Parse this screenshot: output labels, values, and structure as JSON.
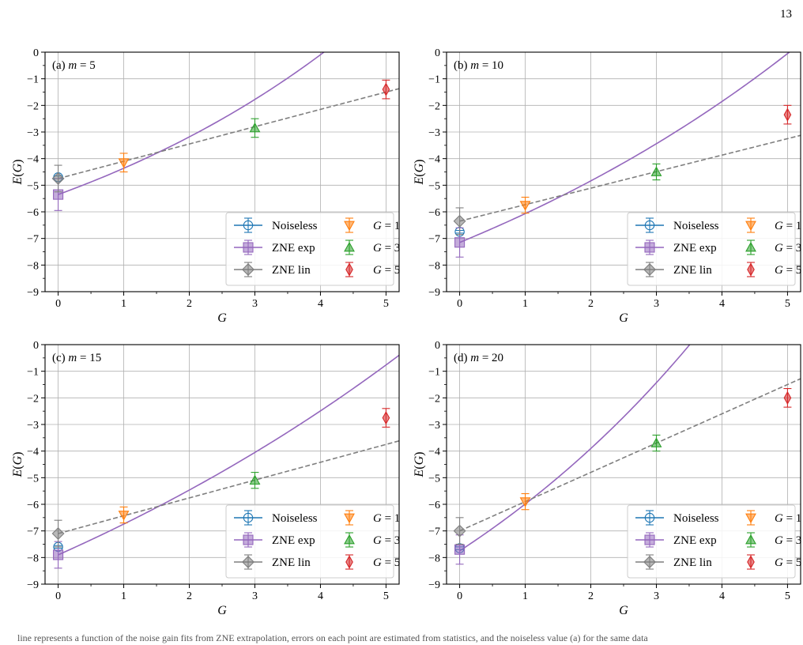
{
  "page": {
    "number": "13",
    "caption_fragment": "line represents a function of the noise gain fits from ZNE extrapolation, errors on each point are estimated from statistics, and the noiseless value (a) for the same data"
  },
  "colors": {
    "noiseless": "#1f77b4",
    "zne_exp": "#9467bd",
    "zne_lin": "#7f7f7f",
    "g1": "#ff7f0e",
    "g3": "#2ca02c",
    "g5": "#d62728",
    "grid": "#b0b0b0"
  },
  "legend_labels": {
    "noiseless": "Noiseless",
    "zne_exp": "ZNE exp",
    "zne_lin": "ZNE lin",
    "g1": "G = 1",
    "g3": "G = 3",
    "g5": "G = 5"
  },
  "chart_data": [
    {
      "type": "scatter",
      "panel_label": "(a) m = 5",
      "xlabel": "G",
      "ylabel": "E(G)",
      "xlim": [
        -0.2,
        5.2
      ],
      "ylim": [
        -9,
        0
      ],
      "xticks": [
        0,
        1,
        2,
        3,
        4,
        5
      ],
      "yticks": [
        0,
        -1,
        -2,
        -3,
        -4,
        -5,
        -6,
        -7,
        -8,
        -9
      ],
      "grid": true,
      "legend_position": "lower-right",
      "points": [
        {
          "series": "noiseless",
          "x": 0,
          "y": -4.7,
          "err": 0.05
        },
        {
          "series": "zne_exp",
          "x": 0,
          "y": -5.35,
          "err": 0.6
        },
        {
          "series": "zne_lin",
          "x": 0,
          "y": -4.75,
          "err": 0.5
        },
        {
          "series": "g1",
          "x": 1,
          "y": -4.15,
          "err": 0.35
        },
        {
          "series": "g3",
          "x": 3,
          "y": -2.85,
          "err": 0.35
        },
        {
          "series": "g5",
          "x": 5,
          "y": -1.4,
          "err": 0.35
        }
      ],
      "exp_fit": {
        "a": 5.1,
        "b": 0.177,
        "c": -10.45
      },
      "lin_fit": {
        "slope": 0.65,
        "intercept": -4.75
      }
    },
    {
      "type": "scatter",
      "panel_label": "(b) m = 10",
      "xlabel": "G",
      "ylabel": "E(G)",
      "xlim": [
        -0.2,
        5.2
      ],
      "ylim": [
        -9,
        0
      ],
      "xticks": [
        0,
        1,
        2,
        3,
        4,
        5
      ],
      "yticks": [
        0,
        -1,
        -2,
        -3,
        -4,
        -5,
        -6,
        -7,
        -8,
        -9
      ],
      "grid": true,
      "legend_position": "lower-right",
      "points": [
        {
          "series": "noiseless",
          "x": 0,
          "y": -6.75,
          "err": 0.05
        },
        {
          "series": "zne_exp",
          "x": 0,
          "y": -7.15,
          "err": 0.55
        },
        {
          "series": "zne_lin",
          "x": 0,
          "y": -6.35,
          "err": 0.5
        },
        {
          "series": "g1",
          "x": 1,
          "y": -5.75,
          "err": 0.3
        },
        {
          "series": "g3",
          "x": 3,
          "y": -4.5,
          "err": 0.3
        },
        {
          "series": "g5",
          "x": 5,
          "y": -2.35,
          "err": 0.35
        }
      ],
      "exp_fit": {
        "a": 8.0,
        "b": 0.127,
        "c": -15.15
      },
      "lin_fit": {
        "slope": 0.62,
        "intercept": -6.35
      }
    },
    {
      "type": "scatter",
      "panel_label": "(c) m = 15",
      "xlabel": "G",
      "ylabel": "E(G)",
      "xlim": [
        -0.2,
        5.2
      ],
      "ylim": [
        -9,
        0
      ],
      "xticks": [
        0,
        1,
        2,
        3,
        4,
        5
      ],
      "yticks": [
        0,
        -1,
        -2,
        -3,
        -4,
        -5,
        -6,
        -7,
        -8,
        -9
      ],
      "grid": true,
      "legend_position": "lower-right",
      "points": [
        {
          "series": "noiseless",
          "x": 0,
          "y": -7.6,
          "err": 0.05
        },
        {
          "series": "zne_exp",
          "x": 0,
          "y": -7.9,
          "err": 0.5
        },
        {
          "series": "zne_lin",
          "x": 0,
          "y": -7.1,
          "err": 0.5
        },
        {
          "series": "g1",
          "x": 1,
          "y": -6.4,
          "err": 0.3
        },
        {
          "series": "g3",
          "x": 3,
          "y": -5.1,
          "err": 0.3
        },
        {
          "series": "g5",
          "x": 5,
          "y": -2.75,
          "err": 0.35
        }
      ],
      "exp_fit": {
        "a": 11.0,
        "b": 0.1,
        "c": -18.9
      },
      "lin_fit": {
        "slope": 0.67,
        "intercept": -7.1
      }
    },
    {
      "type": "scatter",
      "panel_label": "(d) m = 20",
      "xlabel": "G",
      "ylabel": "E(G)",
      "xlim": [
        -0.2,
        5.2
      ],
      "ylim": [
        -9,
        0
      ],
      "xticks": [
        0,
        1,
        2,
        3,
        4,
        5
      ],
      "yticks": [
        0,
        -1,
        -2,
        -3,
        -4,
        -5,
        -6,
        -7,
        -8,
        -9
      ],
      "grid": true,
      "legend_position": "lower-right",
      "points": [
        {
          "series": "noiseless",
          "x": 0,
          "y": -7.65,
          "err": 0.05
        },
        {
          "series": "zne_exp",
          "x": 0,
          "y": -7.7,
          "err": 0.55
        },
        {
          "series": "zne_lin",
          "x": 0,
          "y": -7.0,
          "err": 0.5
        },
        {
          "series": "g1",
          "x": 1,
          "y": -5.9,
          "err": 0.3
        },
        {
          "series": "g3",
          "x": 3,
          "y": -3.7,
          "err": 0.3
        },
        {
          "series": "g5",
          "x": 5,
          "y": -2.0,
          "err": 0.35
        }
      ],
      "exp_fit": {
        "a": 9.5,
        "b": 0.17,
        "c": -17.25
      },
      "lin_fit": {
        "slope": 1.1,
        "intercept": -7.0
      }
    }
  ]
}
